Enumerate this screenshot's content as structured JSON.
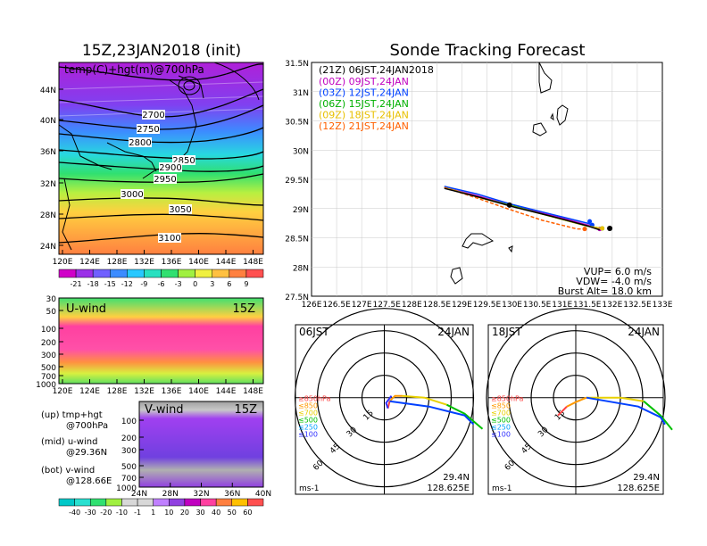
{
  "left_top": {
    "title": "15Z,23JAN2018 (init)",
    "label": "temp(C)+hgt(m)@700hPa",
    "lat_ticks": [
      "44N",
      "40N",
      "36N",
      "32N",
      "28N",
      "24N"
    ],
    "lon_ticks": [
      "120E",
      "124E",
      "128E",
      "132E",
      "136E",
      "140E",
      "144E",
      "148E"
    ],
    "contours": [
      "2700",
      "2750",
      "2800",
      "2850",
      "2900",
      "2950",
      "3000",
      "3050",
      "3100"
    ],
    "colorbar": [
      "-21",
      "-18",
      "-15",
      "-12",
      "-9",
      "-6",
      "-3",
      "0",
      "3",
      "6",
      "9"
    ],
    "colorbar_colors": [
      "#d000c8",
      "#9b30e8",
      "#7060ff",
      "#3c8cff",
      "#28c8ff",
      "#28e0c0",
      "#30e070",
      "#a0f040",
      "#f0f040",
      "#ffc040",
      "#ff8040",
      "#ff5050"
    ]
  },
  "left_mid": {
    "label": "U-wind",
    "time": "15Z",
    "p_ticks": [
      "30",
      "50",
      "100",
      "200",
      "300",
      "500",
      "700",
      "1000"
    ],
    "lon_ticks": [
      "120E",
      "124E",
      "128E",
      "132E",
      "136E",
      "140E",
      "144E",
      "148E"
    ]
  },
  "left_bot": {
    "label": "V-wind",
    "time": "15Z",
    "p_ticks": [
      "100",
      "200",
      "300",
      "500",
      "700",
      "1000"
    ],
    "lat_ticks": [
      "24N",
      "28N",
      "32N",
      "36N",
      "40N"
    ],
    "colorbar": [
      "-40",
      "-30",
      "-20",
      "-10",
      "-1",
      "1",
      "10",
      "20",
      "30",
      "40",
      "50",
      "60"
    ],
    "colorbar_colors": [
      "#00c8c8",
      "#28e0d0",
      "#30e070",
      "#a0f040",
      "#d8d8d8",
      "#d8d8d8",
      "#c080ff",
      "#9040e0",
      "#c000c0",
      "#ff40a0",
      "#ff8040",
      "#ffc000",
      "#ff5050"
    ]
  },
  "legend_left": [
    {
      "a": "(up) tmp+hgt",
      "b": "@700hPa"
    },
    {
      "a": "(mid) u-wind",
      "b": "@29.36N"
    },
    {
      "a": "(bot) v-wind",
      "b": "@128.66E"
    }
  ],
  "right": {
    "title": "Sonde Tracking Forecast",
    "lat_ticks": [
      "31.5N",
      "31N",
      "30.5N",
      "30N",
      "29.5N",
      "29N",
      "28.5N",
      "28N",
      "27.5N"
    ],
    "lon_ticks": [
      "126E",
      "126.5E",
      "127E",
      "127.5E",
      "128E",
      "128.5E",
      "129E",
      "129.5E",
      "130E",
      "130.5E",
      "131E",
      "131.5E",
      "132E",
      "132.5E",
      "133E"
    ],
    "launch_label": "(21Z)  06JST,24JAN2018",
    "vup": "VUP=  6.0  m/s",
    "vdw": "VDW= -4.0  m/s",
    "burst": "Burst Alt=  18.0  km"
  },
  "chart_data": {
    "type": "line",
    "title": "Sonde Tracking Forecast",
    "xlim": [
      126,
      133
    ],
    "ylim": [
      27.5,
      31.5
    ],
    "series": [
      {
        "name": "(00Z)  09JST,24JAN",
        "color": "#c000c0",
        "x": [
          128.65,
          129.3,
          130.0,
          130.8,
          131.5,
          131.75
        ],
        "y": [
          29.36,
          29.22,
          29.05,
          28.88,
          28.72,
          28.65
        ]
      },
      {
        "name": "(03Z)  12JST,24JAN",
        "color": "#0040ff",
        "x": [
          128.65,
          129.3,
          130.0,
          130.8,
          131.5,
          131.6
        ],
        "y": [
          29.38,
          29.25,
          29.07,
          28.9,
          28.75,
          28.72
        ]
      },
      {
        "name": "(06Z)  15JST,24JAN",
        "color": "#00b000",
        "x": [
          128.65,
          129.3,
          130.0,
          130.8,
          131.5,
          131.8
        ],
        "y": [
          29.36,
          29.2,
          29.05,
          28.86,
          28.7,
          28.66
        ]
      },
      {
        "name": "(09Z)  18JST,24JAN",
        "color": "#e8c000",
        "x": [
          128.65,
          129.3,
          130.0,
          130.8,
          131.5,
          131.8
        ],
        "y": [
          29.36,
          29.2,
          29.04,
          28.86,
          28.7,
          28.66
        ]
      },
      {
        "name": "(12Z)  21JST,24JAN",
        "color": "#ff6000",
        "x": [
          128.65,
          129.3,
          129.9,
          130.6,
          131.3,
          131.45
        ],
        "y": [
          29.36,
          29.18,
          29.0,
          28.8,
          28.65,
          28.65
        ]
      }
    ]
  },
  "hodo_left": {
    "time": "06JST",
    "date": "24JAN",
    "rings": [
      "15",
      "30",
      "45",
      "60"
    ],
    "unit": "ms-1",
    "lat": "29.4N",
    "lon": "128.625E",
    "legend": [
      {
        "t": "≥850hPa",
        "c": "#ff4040"
      },
      {
        "t": "≤850",
        "c": "#ff9900"
      },
      {
        "t": "≤700",
        "c": "#e8d000"
      },
      {
        "t": "≤500",
        "c": "#00c000"
      },
      {
        "t": "≤250",
        "c": "#00a0ff"
      },
      {
        "t": "≤100",
        "c": "#3030ff"
      }
    ]
  },
  "hodo_right": {
    "time": "18JST",
    "date": "24JAN",
    "rings": [
      "15",
      "30",
      "45",
      "60"
    ],
    "unit": "ms-1",
    "lat": "29.4N",
    "lon": "128.625E",
    "legend": [
      {
        "t": "≥850hPa",
        "c": "#ff4040"
      },
      {
        "t": "≤850",
        "c": "#ff9900"
      },
      {
        "t": "≤700",
        "c": "#e8d000"
      },
      {
        "t": "≤500",
        "c": "#00c000"
      },
      {
        "t": "≤250",
        "c": "#00a0ff"
      },
      {
        "t": "≤100",
        "c": "#3030ff"
      }
    ]
  }
}
